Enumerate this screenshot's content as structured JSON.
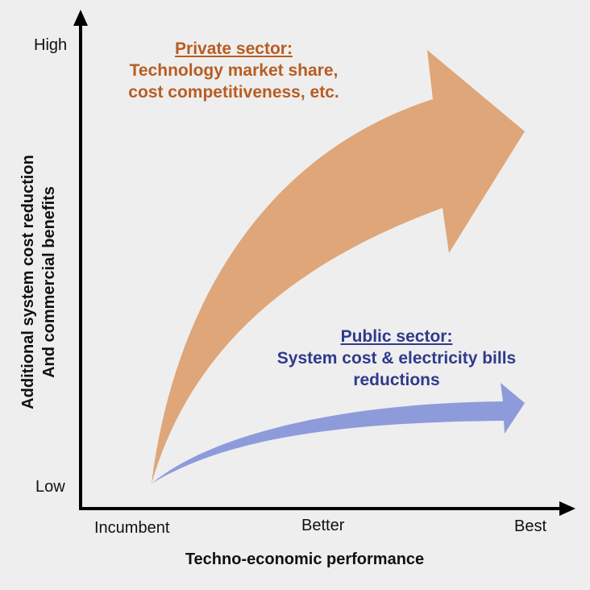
{
  "y_axis": {
    "label_line1": "Additional system cost reduction",
    "label_line2": "And commercial benefits",
    "high": "High",
    "low": "Low"
  },
  "x_axis": {
    "label": "Techno-economic performance",
    "ticks": [
      "Incumbent",
      "Better",
      "Best"
    ]
  },
  "private_sector": {
    "heading": "Private sector:",
    "line1": "Technology market share,",
    "line2": "cost competitiveness, etc.",
    "color": "#b85d22",
    "arrow_color": "#dea679"
  },
  "public_sector": {
    "heading": "Public sector:",
    "line1": "System cost & electricity bills",
    "line2": "reductions",
    "color": "#2f3a8c",
    "arrow_color": "#8e9bdb"
  },
  "colors": {
    "background": "#eeeeee",
    "axis": "#000000"
  }
}
